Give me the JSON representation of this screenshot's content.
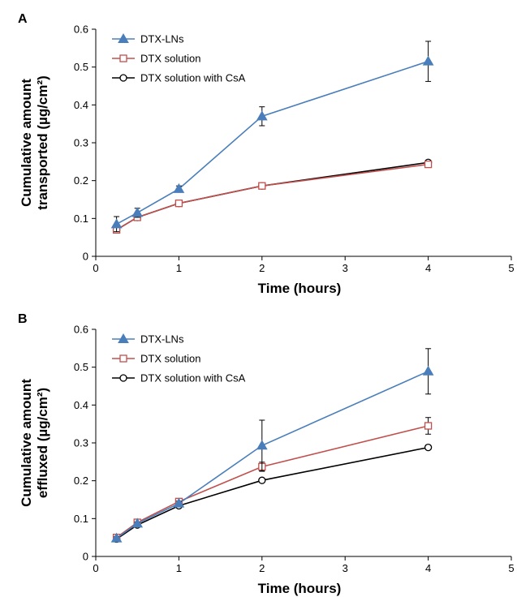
{
  "chart_data": [
    {
      "panel": "A",
      "type": "line",
      "xlabel": "Time (hours)",
      "ylabel": [
        "Cumulative amount",
        "transported (µg/cm²)"
      ],
      "xlim": [
        0,
        5
      ],
      "ylim": [
        0,
        0.6
      ],
      "xticks": [
        "0",
        "1",
        "2",
        "3",
        "4",
        "5"
      ],
      "yticks": [
        "0",
        "0.1",
        "0.2",
        "0.3",
        "0.4",
        "0.5",
        "0.6"
      ],
      "grid": false,
      "legend_position": "top-left",
      "x": [
        0.25,
        0.5,
        1,
        2,
        4
      ],
      "series": [
        {
          "name": "DTX-LNs",
          "marker": "filled-triangle",
          "color": "#4a7ebb",
          "values": [
            0.085,
            0.115,
            0.178,
            0.37,
            0.515
          ],
          "errors": [
            0.02,
            0.012,
            0.008,
            0.025,
            0.053
          ]
        },
        {
          "name": "DTX solution",
          "marker": "open-square",
          "color": "#c0504d",
          "values": [
            0.07,
            0.103,
            0.14,
            0.186,
            0.243
          ],
          "errors": [
            0.005,
            0.005,
            0.004,
            0.004,
            0.008
          ]
        },
        {
          "name": "DTX solution with CsA",
          "marker": "open-circle",
          "color": "#000000",
          "values": [
            0.07,
            0.103,
            0.14,
            0.186,
            0.248
          ],
          "errors": [
            0.004,
            0.004,
            0.004,
            0.004,
            0.006
          ]
        }
      ]
    },
    {
      "panel": "B",
      "type": "line",
      "xlabel": "Time (hours)",
      "ylabel": [
        "Cumulative amount",
        "effluxed (µg/cm²)"
      ],
      "xlim": [
        0,
        5
      ],
      "ylim": [
        0,
        0.6
      ],
      "xticks": [
        "0",
        "1",
        "2",
        "3",
        "4",
        "5"
      ],
      "yticks": [
        "0",
        "0.1",
        "0.2",
        "0.3",
        "0.4",
        "0.5",
        "0.6"
      ],
      "grid": false,
      "legend_position": "top-left",
      "x": [
        0.25,
        0.5,
        1,
        2,
        4
      ],
      "series": [
        {
          "name": "DTX-LNs",
          "marker": "filled-triangle",
          "color": "#4a7ebb",
          "values": [
            0.048,
            0.087,
            0.14,
            0.293,
            0.489
          ],
          "errors": [
            0.004,
            0.004,
            0.006,
            0.067,
            0.06
          ]
        },
        {
          "name": "DTX solution",
          "marker": "open-square",
          "color": "#c0504d",
          "values": [
            0.05,
            0.09,
            0.145,
            0.237,
            0.345
          ],
          "errors": [
            0.004,
            0.004,
            0.005,
            0.012,
            0.022
          ]
        },
        {
          "name": "DTX solution with CsA",
          "marker": "open-circle",
          "color": "#000000",
          "values": [
            0.046,
            0.083,
            0.134,
            0.201,
            0.288
          ],
          "errors": [
            0.003,
            0.003,
            0.004,
            0.004,
            0.006
          ]
        }
      ]
    }
  ]
}
